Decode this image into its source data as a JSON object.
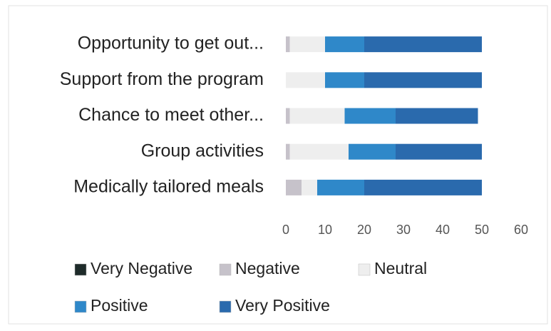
{
  "chart_data": {
    "type": "stacked_bar_horizontal",
    "categories": [
      "Opportunity to get out...",
      "Support from the program",
      "Chance to meet other...",
      "Group activities",
      "Medically tailored meals"
    ],
    "series": [
      {
        "name": "Very Negative",
        "color": "#1e2b2a",
        "values": [
          0,
          0,
          0,
          0,
          0
        ]
      },
      {
        "name": "Negative",
        "color": "#c6c2ca",
        "values": [
          1,
          0,
          1,
          1,
          4
        ]
      },
      {
        "name": "Neutral",
        "color": "#eeeeee",
        "values": [
          9,
          10,
          14,
          15,
          4
        ]
      },
      {
        "name": "Positive",
        "color": "#2f88c9",
        "values": [
          10,
          10,
          13,
          12,
          12
        ]
      },
      {
        "name": "Very Positive",
        "color": "#2a6aad",
        "values": [
          30,
          30,
          21,
          22,
          30
        ]
      }
    ],
    "xlim": [
      0,
      60
    ],
    "xticks": [
      0,
      10,
      20,
      30,
      40,
      50,
      60
    ]
  }
}
